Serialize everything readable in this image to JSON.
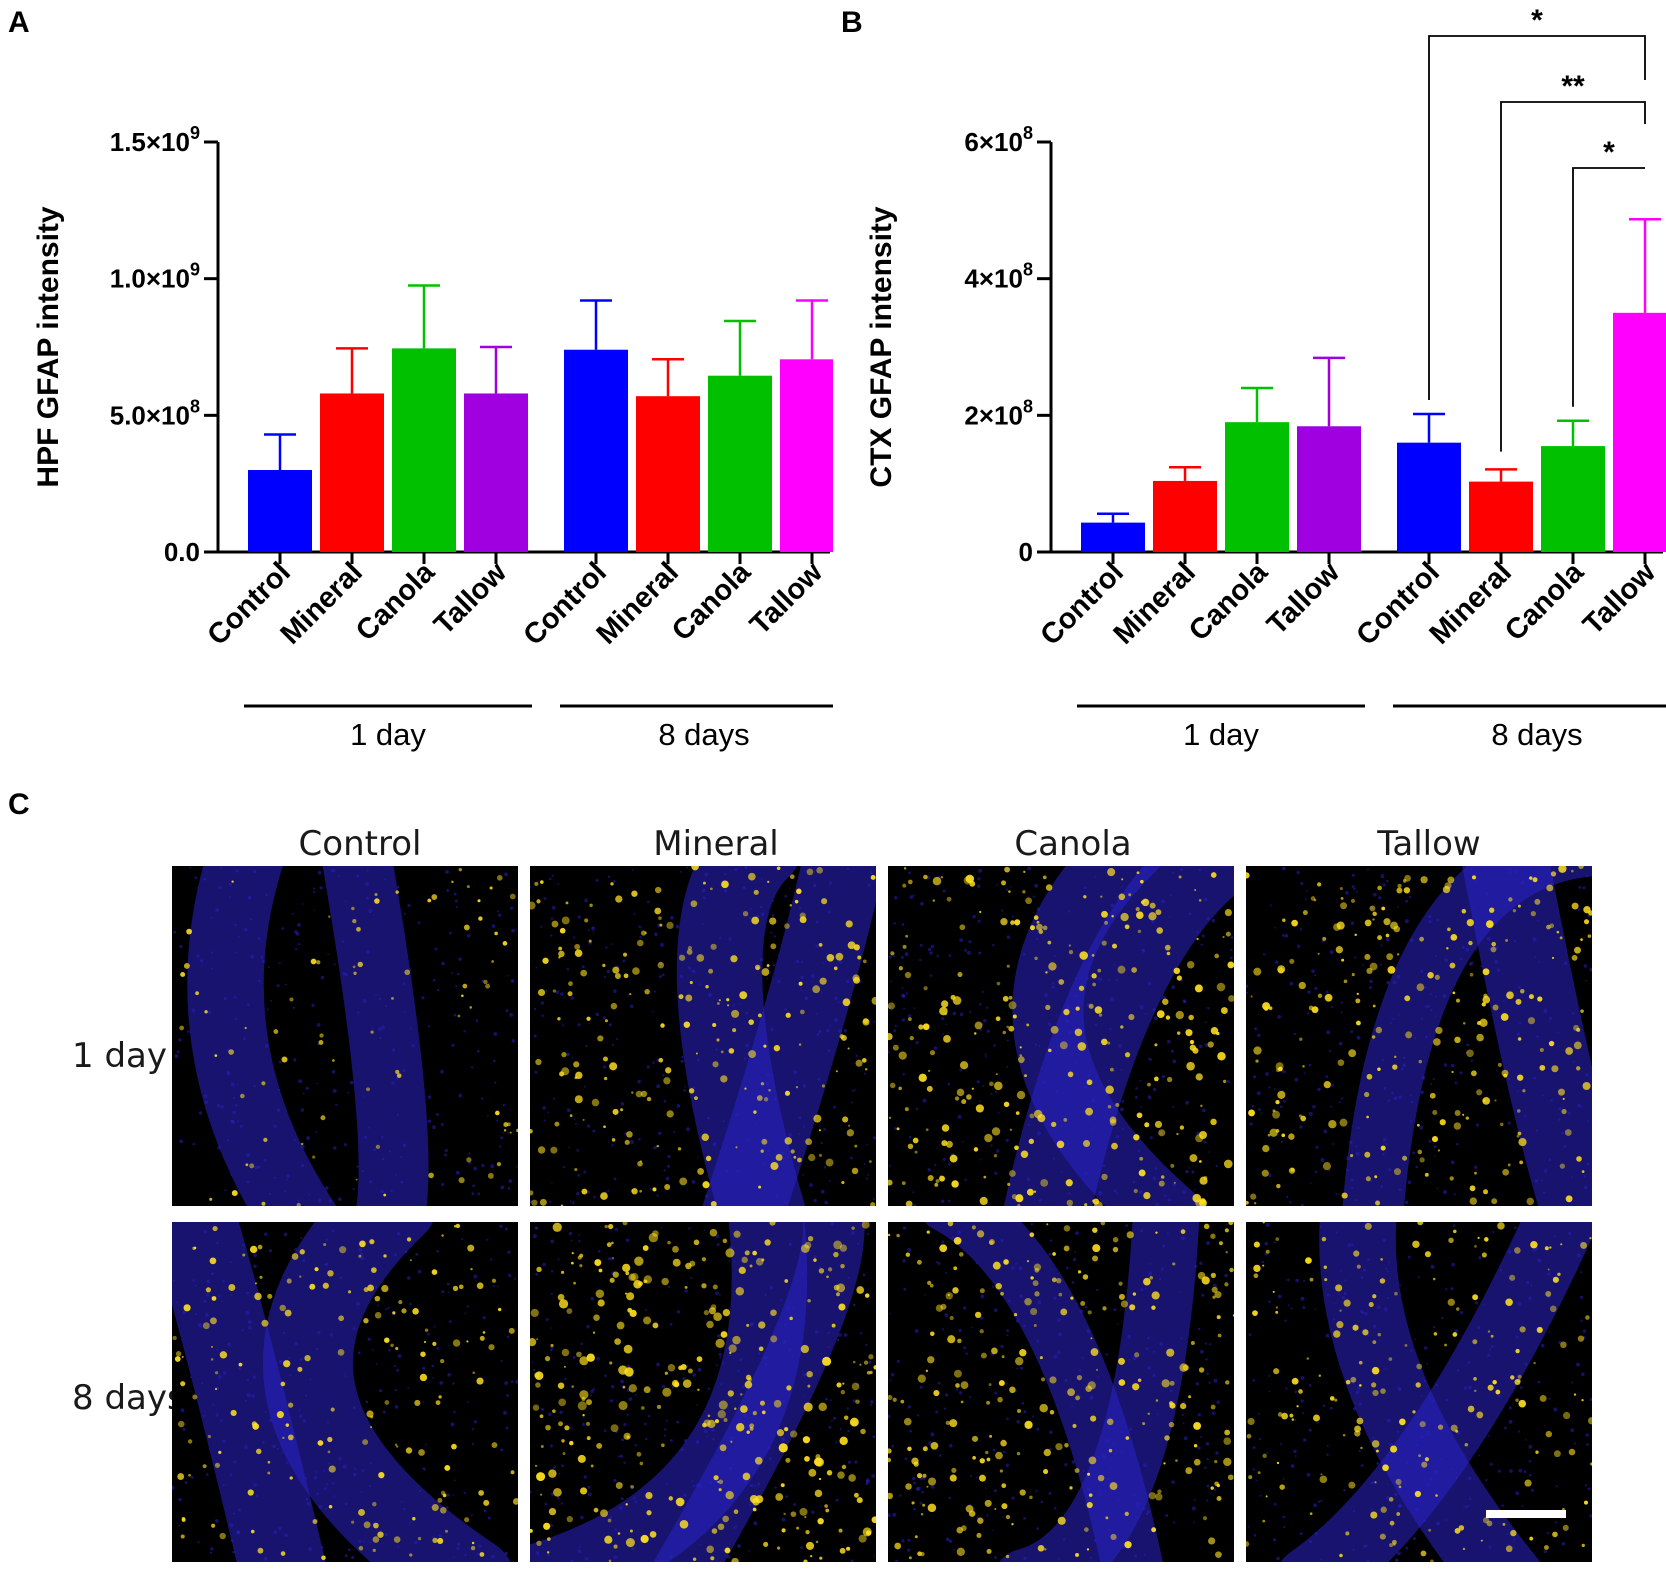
{
  "panels": {
    "a": "A",
    "b": "B",
    "c": "C"
  },
  "colors": {
    "control": "#0000ff",
    "mineral": "#ff0000",
    "canola": "#00c000",
    "tallow_1day": "#a000e0",
    "tallow_8days": "#ff00ff",
    "nuclei": "#2a22c8",
    "gfap": "#ffe020"
  },
  "chart_data": [
    {
      "panel": "A",
      "type": "bar",
      "ylabel": "HPF GFAP intensity",
      "ylim": [
        0,
        1500000000
      ],
      "yticks": [
        0,
        500000000,
        1000000000,
        1500000000
      ],
      "ytick_labels": [
        {
          "mant": "0.0",
          "exp": ""
        },
        {
          "mant": "5.0×10",
          "exp": "8"
        },
        {
          "mant": "1.0×10",
          "exp": "9"
        },
        {
          "mant": "1.5×10",
          "exp": "9"
        }
      ],
      "categories": [
        "Control",
        "Mineral",
        "Canola",
        "Tallow",
        "Control",
        "Mineral",
        "Canola",
        "Tallow"
      ],
      "groups": [
        {
          "label": "1 day",
          "indices": [
            0,
            1,
            2,
            3
          ]
        },
        {
          "label": "8 days",
          "indices": [
            4,
            5,
            6,
            7
          ]
        }
      ],
      "values": [
        300000000,
        580000000,
        745000000,
        580000000,
        740000000,
        570000000,
        645000000,
        705000000
      ],
      "errors": [
        130000000,
        165000000,
        230000000,
        170000000,
        180000000,
        135000000,
        200000000,
        215000000
      ],
      "bar_colors": [
        "#0000ff",
        "#ff0000",
        "#00c000",
        "#a000e0",
        "#0000ff",
        "#ff0000",
        "#00c000",
        "#ff00ff"
      ],
      "significance": []
    },
    {
      "panel": "B",
      "type": "bar",
      "ylabel": "CTX GFAP intensity",
      "ylim": [
        0,
        600000000
      ],
      "yticks": [
        0,
        200000000,
        400000000,
        600000000
      ],
      "ytick_labels": [
        {
          "mant": "0",
          "exp": ""
        },
        {
          "mant": "2×10",
          "exp": "8"
        },
        {
          "mant": "4×10",
          "exp": "8"
        },
        {
          "mant": "6×10",
          "exp": "8"
        }
      ],
      "categories": [
        "Control",
        "Mineral",
        "Canola",
        "Tallow",
        "Control",
        "Mineral",
        "Canola",
        "Tallow"
      ],
      "groups": [
        {
          "label": "1 day",
          "indices": [
            0,
            1,
            2,
            3
          ]
        },
        {
          "label": "8 days",
          "indices": [
            4,
            5,
            6,
            7
          ]
        }
      ],
      "values": [
        43000000,
        104000000,
        190000000,
        184000000,
        160000000,
        103000000,
        155000000,
        350000000
      ],
      "errors": [
        13000000,
        20000000,
        50000000,
        100000000,
        42000000,
        18000000,
        37000000,
        137000000
      ],
      "bar_colors": [
        "#0000ff",
        "#ff0000",
        "#00c000",
        "#a000e0",
        "#0000ff",
        "#ff0000",
        "#00c000",
        "#ff00ff"
      ],
      "significance": [
        {
          "from": 4,
          "to": 7,
          "label": "*"
        },
        {
          "from": 5,
          "to": 7,
          "label": "**"
        },
        {
          "from": 6,
          "to": 7,
          "label": "*"
        }
      ]
    }
  ],
  "micrographs": {
    "columns": [
      "Control",
      "Mineral",
      "Canola",
      "Tallow"
    ],
    "rows": [
      "1 day",
      "8 days"
    ],
    "gfap_density": [
      [
        0.25,
        0.7,
        0.85,
        0.75
      ],
      [
        0.55,
        1.0,
        0.8,
        0.6
      ]
    ]
  }
}
